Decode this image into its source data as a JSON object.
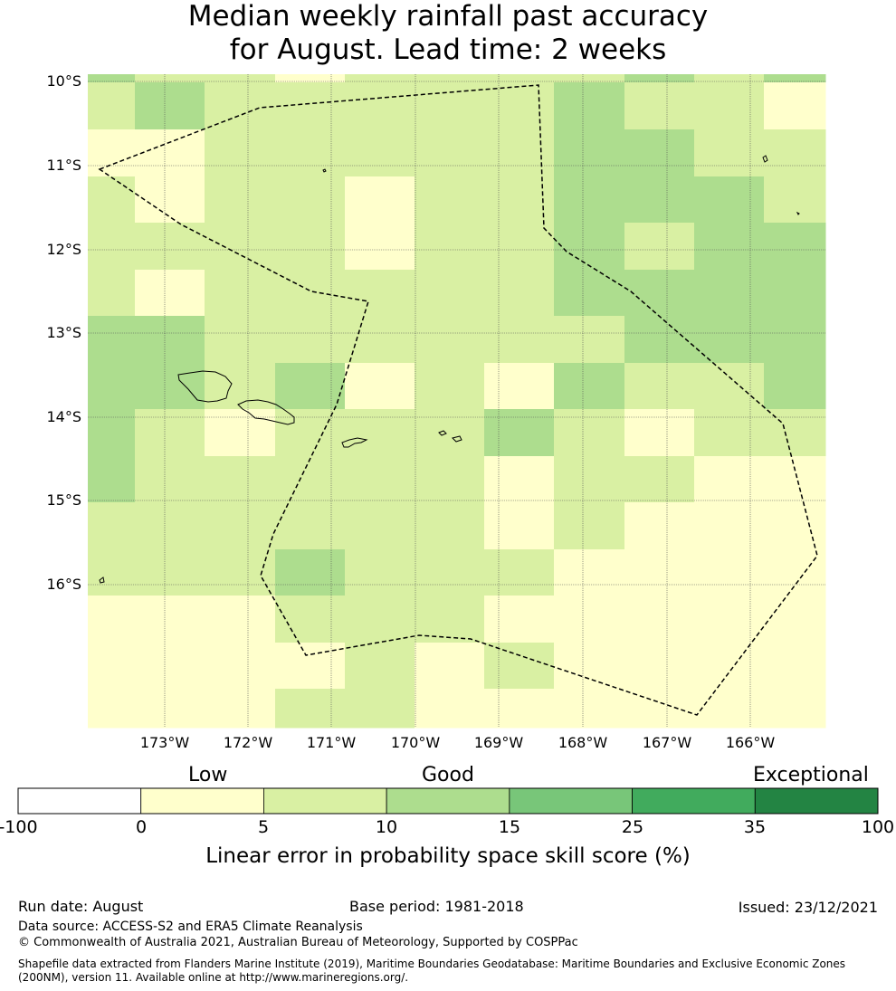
{
  "title": {
    "line1": "Median weekly rainfall past accuracy",
    "line2": "for August. Lead time: 2 weeks"
  },
  "map": {
    "lat_labels": [
      "10°S",
      "11°S",
      "12°S",
      "13°S",
      "14°S",
      "15°S",
      "16°S"
    ],
    "lon_labels": [
      "173°W",
      "172°W",
      "171°W",
      "170°W",
      "169°W",
      "168°W",
      "167°W",
      "166°W"
    ],
    "grid_classes": [
      [
        3,
        2,
        2,
        1,
        2,
        2,
        2,
        2,
        3,
        2,
        3
      ],
      [
        2,
        3,
        2,
        2,
        2,
        2,
        2,
        3,
        2,
        2,
        1
      ],
      [
        1,
        1,
        2,
        2,
        2,
        2,
        2,
        3,
        3,
        2,
        2
      ],
      [
        2,
        1,
        2,
        2,
        1,
        2,
        2,
        3,
        3,
        3,
        2
      ],
      [
        2,
        2,
        2,
        2,
        1,
        2,
        2,
        3,
        2,
        3,
        3
      ],
      [
        2,
        1,
        2,
        2,
        2,
        2,
        2,
        3,
        3,
        3,
        3
      ],
      [
        3,
        3,
        2,
        2,
        2,
        2,
        2,
        2,
        3,
        3,
        3
      ],
      [
        3,
        3,
        2,
        3,
        1,
        2,
        1,
        3,
        2,
        2,
        3
      ],
      [
        3,
        2,
        1,
        2,
        2,
        2,
        3,
        2,
        1,
        2,
        2
      ],
      [
        3,
        2,
        2,
        2,
        2,
        2,
        1,
        2,
        2,
        1,
        1
      ],
      [
        2,
        2,
        2,
        2,
        2,
        2,
        1,
        2,
        1,
        1,
        1
      ],
      [
        2,
        2,
        2,
        3,
        2,
        2,
        2,
        1,
        1,
        1,
        1
      ],
      [
        1,
        1,
        1,
        2,
        2,
        2,
        1,
        1,
        1,
        1,
        1
      ],
      [
        1,
        1,
        1,
        1,
        2,
        1,
        2,
        1,
        1,
        1,
        1
      ],
      [
        1,
        1,
        1,
        2,
        2,
        1,
        1,
        1,
        1,
        1,
        1
      ]
    ]
  },
  "colorbar": {
    "categories": [
      "Low",
      "Good",
      "Exceptional"
    ],
    "ticks": [
      "-100",
      "0",
      "5",
      "10",
      "15",
      "25",
      "35",
      "100"
    ],
    "colors": [
      "#ffffff",
      "#ffffcc",
      "#d9f0a3",
      "#addd8e",
      "#78c679",
      "#41ab5d",
      "#238443"
    ],
    "label": "Linear error in probability space skill score (%)"
  },
  "footer": {
    "run_date": "Run date: August",
    "base_period": "Base period: 1981-2018",
    "issued": "Issued: 23/12/2021",
    "data_source": "Data source: ACCESS-S2 and ERA5 Climate Reanalysis",
    "copyright": "© Commonwealth of Australia 2021, Australian Bureau of Meteorology, Supported by COSPPac",
    "shapefile": "Shapefile data extracted from Flanders Marine Institute (2019), Maritime Boundaries Geodatabase: Maritime Boundaries and Exclusive Economic Zones (200NM), version 11. Available online at http://www.marineregions.org/."
  }
}
